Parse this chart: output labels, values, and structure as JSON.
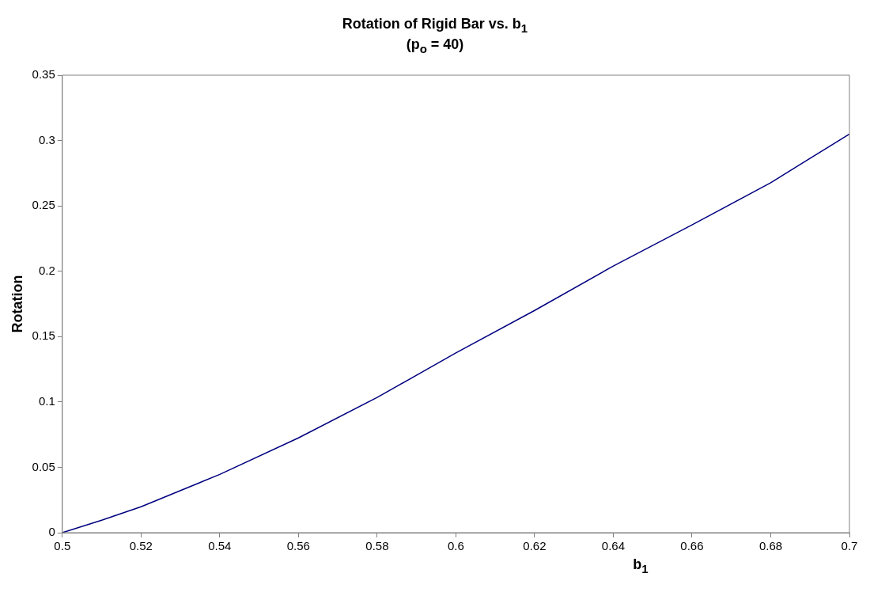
{
  "chart_data": {
    "type": "line",
    "title": "Rotation of Rigid Bar vs. b$_{1}$",
    "subtitle": "(p$_{o}$ = 40)",
    "xlabel": "b$_{1}$",
    "ylabel": "Rotation",
    "x": [
      0.5,
      0.51,
      0.52,
      0.54,
      0.56,
      0.58,
      0.6,
      0.62,
      0.64,
      0.66,
      0.68,
      0.7
    ],
    "series": [
      {
        "color": "#000080",
        "values": [
          0,
          0.0095,
          0.0198,
          0.0446,
          0.0725,
          0.1035,
          0.1375,
          0.17,
          0.204,
          0.2355,
          0.2677,
          0.305
        ]
      }
    ],
    "xlim": [
      0.5,
      0.7
    ],
    "xticks": [
      0.5,
      0.52,
      0.54,
      0.56,
      0.58,
      0.6,
      0.62,
      0.64,
      0.66,
      0.68,
      0.7
    ],
    "ylim": [
      0,
      0.35
    ],
    "yticks": [
      0,
      0.05,
      0.1,
      0.15,
      0.2,
      0.25,
      0.3,
      0.35
    ],
    "grid": false,
    "legend": false,
    "marker": "none",
    "line_style": "solid"
  }
}
